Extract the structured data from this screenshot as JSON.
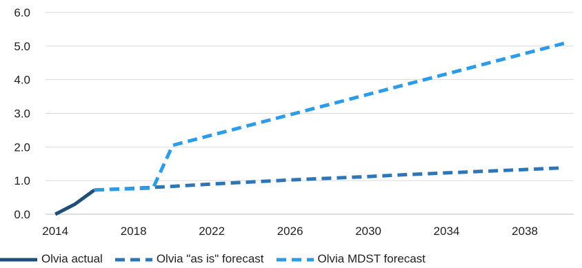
{
  "chart_data": {
    "type": "line",
    "title": "",
    "xlabel": "",
    "ylabel": "",
    "xlim": [
      2013.5,
      2040.5
    ],
    "ylim": [
      0,
      6
    ],
    "x_ticks": [
      2014,
      2018,
      2022,
      2026,
      2030,
      2034,
      2038
    ],
    "x_tick_labels": [
      "2014",
      "2018",
      "2022",
      "2026",
      "2030",
      "2034",
      "2038"
    ],
    "y_ticks": [
      0,
      1,
      2,
      3,
      4,
      5,
      6
    ],
    "y_tick_labels": [
      "0.0",
      "1.0",
      "2.0",
      "3.0",
      "4.0",
      "5.0",
      "6.0"
    ],
    "grid": "horizontal",
    "legend_position": "bottom",
    "series": [
      {
        "name": "Olvia actual",
        "color": "#1f4e79",
        "dash": "solid",
        "x": [
          2014,
          2015,
          2016
        ],
        "y": [
          0,
          0.3,
          0.72
        ]
      },
      {
        "name": "Olvia \"as is\" forecast",
        "color": "#2e75b6",
        "dash": "dashed",
        "x": [
          2016,
          2018,
          2020,
          2022,
          2024,
          2026,
          2028,
          2030,
          2032,
          2034,
          2036,
          2038,
          2040
        ],
        "y": [
          0.72,
          0.77,
          0.83,
          0.9,
          0.96,
          1.02,
          1.07,
          1.12,
          1.18,
          1.23,
          1.28,
          1.33,
          1.38
        ]
      },
      {
        "name": "Olvia MDST forecast",
        "color": "#2e9be6",
        "dash": "dashed",
        "x": [
          2016,
          2019,
          2020,
          2040
        ],
        "y": [
          0.72,
          0.78,
          2.05,
          5.08
        ]
      }
    ]
  }
}
